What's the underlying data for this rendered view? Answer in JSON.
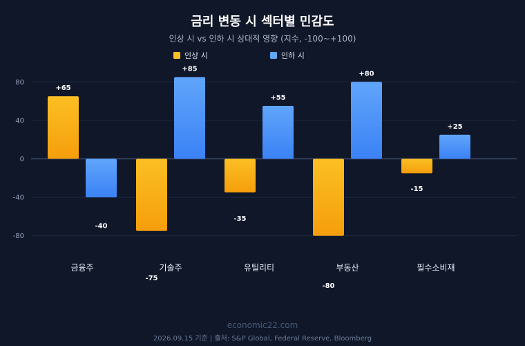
{
  "chart_data": {
    "type": "bar",
    "title": "금리 변동 시 섹터별 민감도",
    "subtitle": "인상 시 vs 인하 시 상대적 영향 (지수, -100~+100)",
    "categories": [
      "금융주",
      "기술주",
      "유틸리티",
      "부동산",
      "필수소비재"
    ],
    "series": [
      {
        "name": "인상 시",
        "values": [
          65,
          -75,
          -35,
          -80,
          -15
        ],
        "labels": [
          "+65",
          "-75",
          "-35",
          "-80",
          "-15"
        ],
        "color_top": "#fbbf24",
        "color_bottom": "#f59e0b"
      },
      {
        "name": "인하 시",
        "values": [
          -40,
          85,
          55,
          80,
          25
        ],
        "labels": [
          "-40",
          "+85",
          "+55",
          "+80",
          "+25"
        ],
        "color_top": "#60a5fa",
        "color_bottom": "#3b82f6"
      }
    ],
    "yticks": [
      80,
      40,
      0,
      -40,
      -80
    ],
    "ytick_labels": [
      "80",
      "40",
      "0",
      "-40",
      "-80"
    ],
    "ylim": [
      -80,
      80
    ],
    "grid": true,
    "legend_position": "top-center"
  },
  "watermark": "economic22.com",
  "footer": "2026.09.15 기준 | 출처: S&P Global, Federal Reserve, Bloomberg",
  "colors": {
    "background": "#0f1729",
    "grid": "#1e2a42",
    "zero_line": "#3a4866"
  }
}
